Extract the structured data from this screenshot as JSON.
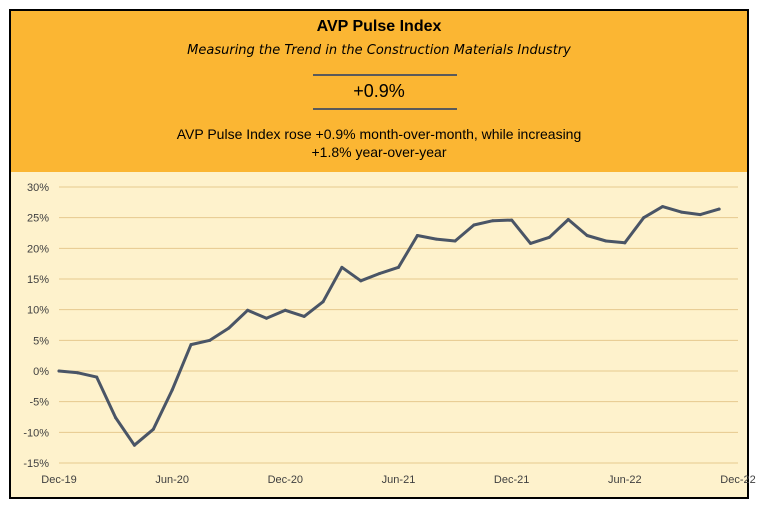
{
  "header": {
    "title": "AVP Pulse Index",
    "subtitle": "Measuring the Trend in the Construction Materials Industry",
    "headline_value": "+0.9%",
    "summary_line1": "AVP Pulse Index rose +0.9% month-over-month, while increasing",
    "summary_line2": "+1.8% year-over-year"
  },
  "colors": {
    "header_background": "#fbb633",
    "plot_background": "#fef2cc",
    "line": "#4a5566",
    "gridline": "#e6c98e"
  },
  "chart_data": {
    "type": "line",
    "title": "",
    "xlabel": "",
    "ylabel": "",
    "y_tick_labels": [
      "30%",
      "25%",
      "20%",
      "15%",
      "10%",
      "5%",
      "0%",
      "-5%",
      "-10%",
      "-15%"
    ],
    "y_ticks": [
      30,
      25,
      20,
      15,
      10,
      5,
      0,
      -5,
      -10,
      -15
    ],
    "x_tick_labels": [
      "Dec-19",
      "Jun-20",
      "Dec-20",
      "Jun-21",
      "Dec-21",
      "Jun-22",
      "Dec-22"
    ],
    "x_ticks": [
      "2019-12",
      "2020-06",
      "2020-12",
      "2021-06",
      "2021-12",
      "2022-06",
      "2022-12"
    ],
    "ylim": [
      -15,
      30
    ],
    "xlim": [
      "2019-12",
      "2022-12"
    ],
    "grid": true,
    "legend": "none",
    "series": [
      {
        "x": [
          "2019-12",
          "2020-01",
          "2020-02",
          "2020-03",
          "2020-04",
          "2020-05",
          "2020-06",
          "2020-07",
          "2020-08",
          "2020-09",
          "2020-10",
          "2020-11",
          "2020-12",
          "2021-01",
          "2021-02",
          "2021-03",
          "2021-04",
          "2021-05",
          "2021-06",
          "2021-07",
          "2021-08",
          "2021-09",
          "2021-10",
          "2021-11",
          "2021-12",
          "2022-01",
          "2022-02",
          "2022-03",
          "2022-04",
          "2022-05",
          "2022-06",
          "2022-07",
          "2022-08",
          "2022-09",
          "2022-10",
          "2022-11"
        ],
        "values": [
          0.0,
          -0.3,
          -1.0,
          -7.6,
          -12.1,
          -9.5,
          -3.1,
          4.3,
          5.0,
          7.0,
          9.9,
          8.6,
          9.9,
          8.9,
          11.3,
          16.9,
          14.7,
          15.9,
          16.9,
          22.1,
          21.5,
          21.2,
          23.8,
          24.5,
          24.6,
          20.8,
          21.8,
          24.7,
          22.1,
          21.2,
          20.9,
          25.0,
          26.8,
          25.9,
          25.5,
          26.4
        ]
      }
    ]
  }
}
